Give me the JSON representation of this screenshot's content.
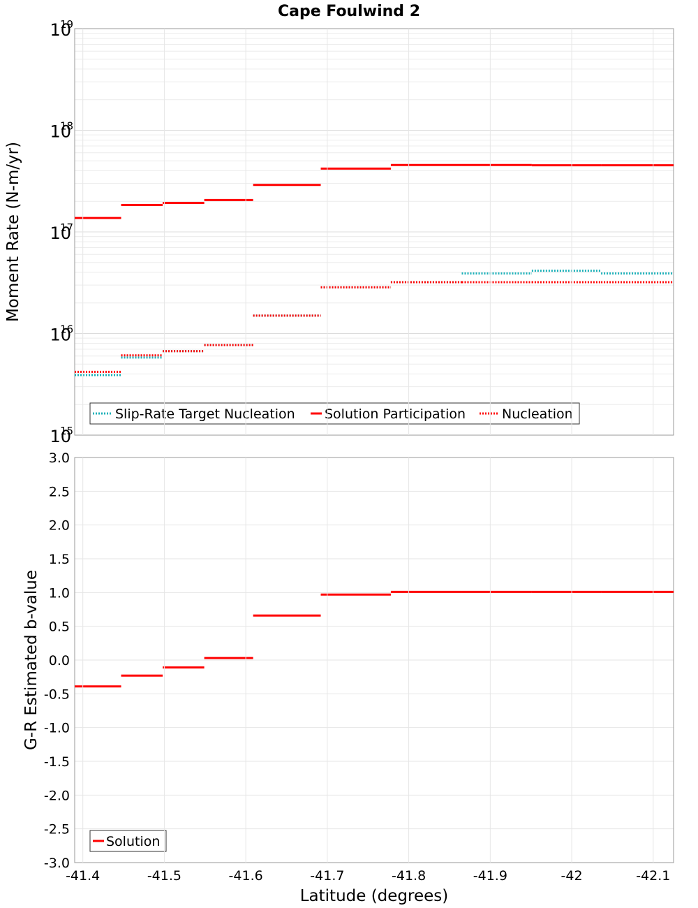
{
  "title": "Cape Foulwind 2",
  "xlabel": "Latitude (degrees)",
  "x_ticks": [
    "-41.4",
    "-41.5",
    "-41.6",
    "-41.7",
    "-41.8",
    "-41.9",
    "-42",
    "-42.1"
  ],
  "chart_data": [
    {
      "type": "line",
      "title": "Cape Foulwind 2",
      "ylabel": "Moment Rate (N-m/yr)",
      "yscale": "log",
      "ylim": [
        1000000000000000.0,
        1e+19
      ],
      "xlim": [
        -41.39,
        -42.125
      ],
      "y_ticks": [
        {
          "base": "10",
          "exp": "15"
        },
        {
          "base": "10",
          "exp": "16"
        },
        {
          "base": "10",
          "exp": "17"
        },
        {
          "base": "10",
          "exp": "18"
        },
        {
          "base": "10",
          "exp": "19"
        }
      ],
      "grid": true,
      "legend_position": "bottom-left",
      "series": [
        {
          "name": "Slip-Rate Target Nucleation",
          "color": "#1ab0b8",
          "style": "dotted",
          "segments": [
            [
              -41.39,
              -41.447,
              3900000000000000.0
            ],
            [
              -41.447,
              -41.498,
              5800000000000000.0
            ],
            [
              -41.498,
              -41.549,
              6700000000000000.0
            ],
            [
              -41.549,
              -41.609,
              7700000000000000.0
            ],
            [
              -41.609,
              -41.692,
              1.5e+16
            ],
            [
              -41.692,
              -41.778,
              2.85e+16
            ],
            [
              -41.778,
              -41.865,
              3.2e+16
            ],
            [
              -41.865,
              -41.951,
              3.9e+16
            ],
            [
              -41.951,
              -42.036,
              4.15e+16
            ],
            [
              -42.036,
              -42.125,
              3.9e+16
            ]
          ]
        },
        {
          "name": "Solution Participation",
          "color": "#ff0000",
          "style": "solid",
          "segments": [
            [
              -41.39,
              -41.447,
              1.37e+17
            ],
            [
              -41.447,
              -41.498,
              1.84e+17
            ],
            [
              -41.498,
              -41.549,
              1.93e+17
            ],
            [
              -41.549,
              -41.609,
              2.06e+17
            ],
            [
              -41.609,
              -41.692,
              2.9e+17
            ],
            [
              -41.692,
              -41.778,
              4.2e+17
            ],
            [
              -41.778,
              -41.865,
              4.55e+17
            ],
            [
              -41.865,
              -41.951,
              4.55e+17
            ],
            [
              -41.951,
              -42.036,
              4.52e+17
            ],
            [
              -42.036,
              -42.125,
              4.52e+17
            ]
          ]
        },
        {
          "name": "Nucleation",
          "color": "#ff0000",
          "style": "dotted",
          "segments": [
            [
              -41.39,
              -41.447,
              4200000000000000.0
            ],
            [
              -41.447,
              -41.498,
              6100000000000000.0
            ],
            [
              -41.498,
              -41.549,
              6700000000000000.0
            ],
            [
              -41.549,
              -41.609,
              7700000000000000.0
            ],
            [
              -41.609,
              -41.692,
              1.5e+16
            ],
            [
              -41.692,
              -41.778,
              2.85e+16
            ],
            [
              -41.778,
              -41.865,
              3.2e+16
            ],
            [
              -41.865,
              -41.951,
              3.2e+16
            ],
            [
              -41.951,
              -42.036,
              3.2e+16
            ],
            [
              -42.036,
              -42.125,
              3.2e+16
            ]
          ]
        }
      ]
    },
    {
      "type": "line",
      "ylabel": "G-R Estimated b-value",
      "ylim": [
        -3.0,
        3.0
      ],
      "xlim": [
        -41.39,
        -42.125
      ],
      "y_ticks": [
        "3.0",
        "2.5",
        "2.0",
        "1.5",
        "1.0",
        "0.5",
        "0.0",
        "-0.5",
        "-1.0",
        "-1.5",
        "-2.0",
        "-2.5",
        "-3.0"
      ],
      "grid": true,
      "legend_position": "bottom-left",
      "series": [
        {
          "name": "Solution",
          "color": "#ff0000",
          "style": "solid",
          "segments": [
            [
              -41.39,
              -41.447,
              -0.39
            ],
            [
              -41.447,
              -41.498,
              -0.23
            ],
            [
              -41.498,
              -41.549,
              -0.11
            ],
            [
              -41.549,
              -41.609,
              0.03
            ],
            [
              -41.609,
              -41.692,
              0.66
            ],
            [
              -41.692,
              -41.778,
              0.97
            ],
            [
              -41.778,
              -41.865,
              1.01
            ],
            [
              -41.865,
              -41.951,
              1.01
            ],
            [
              -41.951,
              -42.036,
              1.01
            ],
            [
              -42.036,
              -42.125,
              1.01
            ]
          ]
        }
      ]
    }
  ]
}
